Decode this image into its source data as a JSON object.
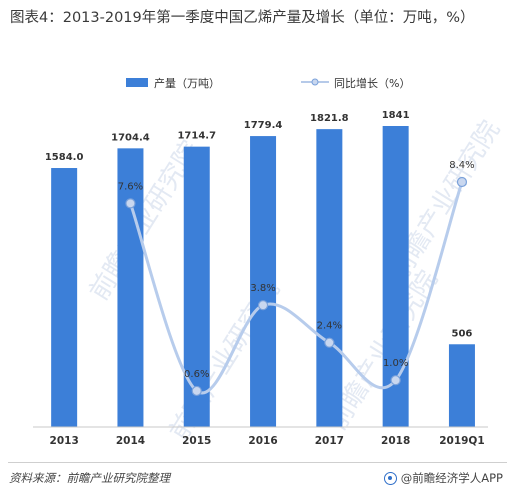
{
  "title": "图表4：2013-2019年第一季度中国乙烯产量及增长（单位：万吨，%）",
  "footer": {
    "source": "资料来源：前瞻产业研究院整理",
    "brand": "@前瞻经济学人APP"
  },
  "watermark": "前瞻产业研究院",
  "colors": {
    "bar": "#3c7fd8",
    "line": "#b7ccec",
    "marker_fill": "#c9d7ef",
    "marker_stroke": "#7aa1da"
  },
  "chart_data": {
    "type": "bar",
    "categories": [
      "2013",
      "2014",
      "2015",
      "2016",
      "2017",
      "2018",
      "2019Q1"
    ],
    "series": [
      {
        "name": "产量（万吨）",
        "type": "bar",
        "values": [
          1584.0,
          1704.4,
          1714.7,
          1779.4,
          1821.8,
          1841,
          506
        ],
        "labels": [
          "1584.0",
          "1704.4",
          "1714.7",
          "1779.4",
          "1821.8",
          "1841",
          "506"
        ]
      },
      {
        "name": "同比增长（%）",
        "type": "line",
        "values": [
          null,
          7.6,
          0.6,
          3.8,
          2.4,
          1.0,
          8.4
        ],
        "labels": [
          "",
          "7.6%",
          "0.6%",
          "3.8%",
          "2.4%",
          "1.0%",
          "8.4%"
        ]
      }
    ],
    "bar_ylim": [
      0,
      2000
    ],
    "line_ylim": [
      0,
      10
    ],
    "legend_position": "top",
    "grid": false
  }
}
